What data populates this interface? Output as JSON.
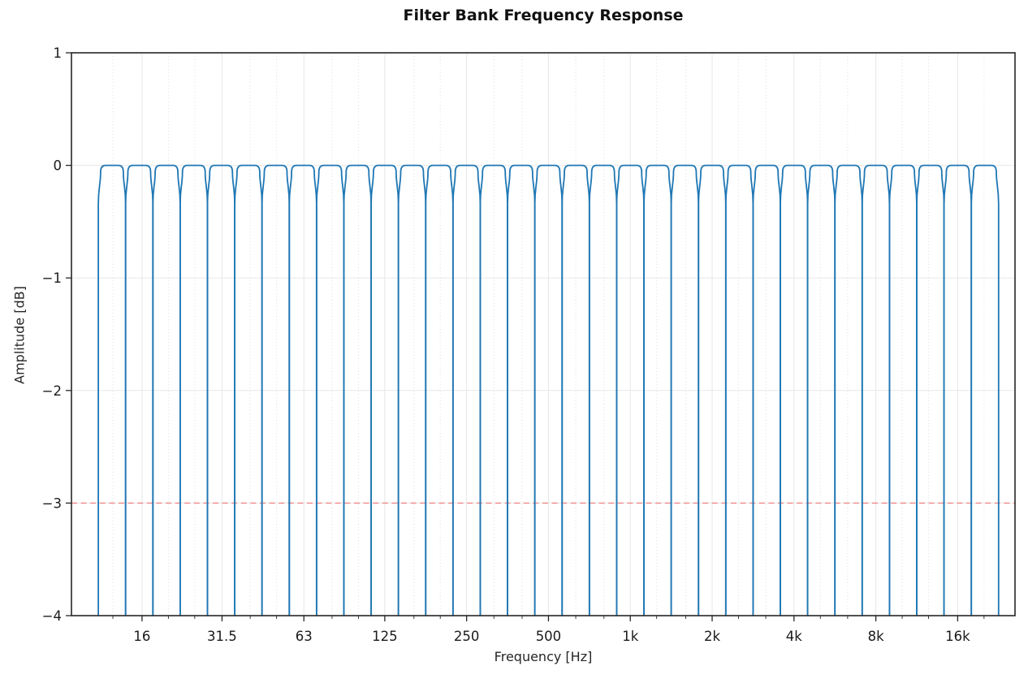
{
  "title": "Filter Bank Frequency Response",
  "chart_data": {
    "type": "line",
    "title": "Filter Bank Frequency Response",
    "xlabel": "Frequency [Hz]",
    "ylabel": "Amplitude [dB]",
    "x_scale": "log",
    "xlim_hz": [
      8.8,
      26000
    ],
    "ylim": [
      -4,
      1
    ],
    "yticks": [
      1,
      0,
      -1,
      -2,
      -3,
      -4
    ],
    "ytick_labels": [
      "1",
      "0",
      "−1",
      "−2",
      "−3",
      "−4"
    ],
    "xtick_labels": [
      "16",
      "31.5",
      "63",
      "125",
      "250",
      "500",
      "1k",
      "2k",
      "4k",
      "8k",
      "16k"
    ],
    "xtick_values_hz": [
      16,
      31.5,
      63,
      125,
      250,
      500,
      1000,
      2000,
      4000,
      8000,
      16000
    ],
    "xminor_tick_values_hz": [
      12.5,
      20,
      25,
      40,
      50,
      80,
      100,
      160,
      200,
      315,
      400,
      630,
      800,
      1250,
      1600,
      2500,
      3150,
      5000,
      6300,
      10000,
      12500,
      20000
    ],
    "grid": true,
    "legend": "none",
    "filter_bank": {
      "count": 33,
      "band_spacing_octaves": 0.33333,
      "bandwidth_octaves": 0.33333,
      "passband_level_db": 0,
      "reference_band_hz": 1000,
      "reference_band_index": 19,
      "center_frequencies_hz": [
        12.5,
        16,
        20,
        25,
        31.5,
        40,
        50,
        63,
        80,
        100,
        125,
        160,
        200,
        250,
        315,
        400,
        500,
        630,
        800,
        1000,
        1250,
        1600,
        2000,
        2500,
        3150,
        4000,
        5000,
        6300,
        8000,
        10000,
        12500,
        16000,
        20000
      ]
    },
    "reference_line": {
      "value_db": -3,
      "style": "dashed",
      "color": "#ee8888"
    },
    "colors": {
      "curve": "#1f77b4",
      "grid_major": "#e7e7e7",
      "grid_minor": "#e1e1e1",
      "spine": "#262626",
      "tick_text": "#1a1a1a"
    }
  }
}
